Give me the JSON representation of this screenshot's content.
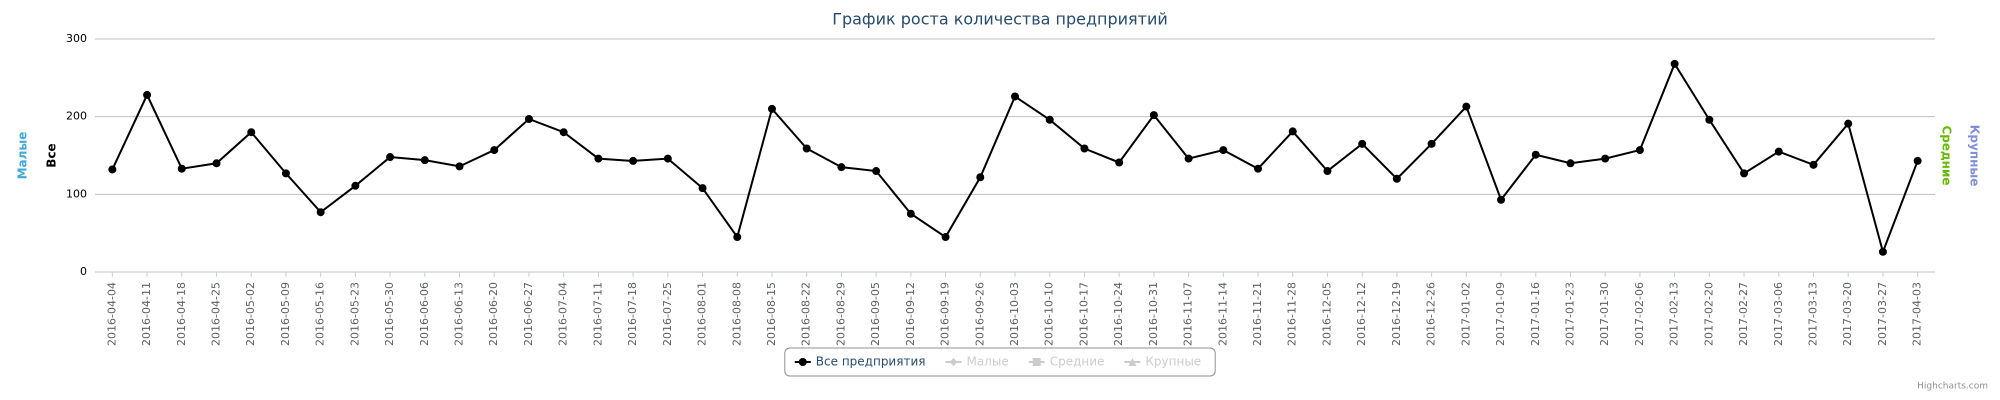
{
  "chart_data": {
    "type": "line",
    "title": "График роста количества предприятий",
    "categories": [
      "2016-04-04",
      "2016-04-11",
      "2016-04-18",
      "2016-04-25",
      "2016-05-02",
      "2016-05-09",
      "2016-05-16",
      "2016-05-23",
      "2016-05-30",
      "2016-06-06",
      "2016-06-13",
      "2016-06-20",
      "2016-06-27",
      "2016-07-04",
      "2016-07-11",
      "2016-07-18",
      "2016-07-25",
      "2016-08-01",
      "2016-08-08",
      "2016-08-15",
      "2016-08-22",
      "2016-08-29",
      "2016-09-05",
      "2016-09-12",
      "2016-09-19",
      "2016-09-26",
      "2016-10-03",
      "2016-10-10",
      "2016-10-17",
      "2016-10-24",
      "2016-10-31",
      "2016-11-07",
      "2016-11-14",
      "2016-11-21",
      "2016-11-28",
      "2016-12-05",
      "2016-12-12",
      "2016-12-19",
      "2016-12-26",
      "2017-01-02",
      "2017-01-09",
      "2017-01-16",
      "2017-01-23",
      "2017-01-30",
      "2017-02-06",
      "2017-02-13",
      "2017-02-20",
      "2017-02-27",
      "2017-03-06",
      "2017-03-13",
      "2017-03-20",
      "2017-03-27",
      "2017-04-03"
    ],
    "series": [
      {
        "name": "Все предприятия",
        "color": "#000000",
        "marker": "circle",
        "visible": true,
        "values": [
          132,
          228,
          133,
          140,
          180,
          127,
          77,
          111,
          148,
          144,
          136,
          157,
          197,
          180,
          146,
          143,
          146,
          108,
          45,
          210,
          159,
          135,
          130,
          75,
          45,
          122,
          226,
          196,
          159,
          141,
          202,
          146,
          157,
          133,
          181,
          130,
          165,
          120,
          165,
          213,
          93,
          151,
          140,
          146,
          157,
          268,
          196,
          127,
          155,
          138,
          191,
          26,
          143
        ]
      },
      {
        "name": "Малые",
        "color": "#cccccc",
        "marker": "diamond",
        "visible": false
      },
      {
        "name": "Средние",
        "color": "#cccccc",
        "marker": "square",
        "visible": false
      },
      {
        "name": "Крупные",
        "color": "#cccccc",
        "marker": "triangle",
        "visible": false
      }
    ],
    "axis_titles": [
      {
        "text": "Малые",
        "color": "#3fa9d9",
        "side": "left"
      },
      {
        "text": "Все",
        "color": "#000000",
        "side": "left"
      },
      {
        "text": "Средние",
        "color": "#66bb00",
        "side": "right"
      },
      {
        "text": "Крупные",
        "color": "#7f8fd8",
        "side": "right"
      }
    ],
    "ylim": [
      0,
      300
    ],
    "yticks": [
      0,
      100,
      200,
      300
    ],
    "grid": true,
    "legend": "bottom",
    "credits": "Highcharts.com"
  }
}
